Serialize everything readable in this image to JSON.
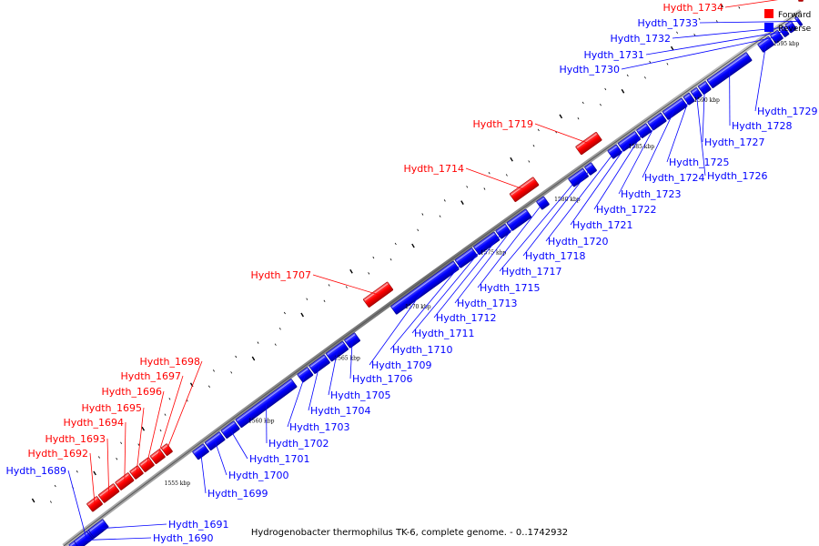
{
  "caption": "Hydrogenobacter thermophilus TK-6, complete genome. - 0..1742932",
  "legend": [
    {
      "label": "Forward",
      "color": "#ff0000"
    },
    {
      "label": "Reverse",
      "color": "#0000ff"
    }
  ],
  "colors": {
    "forward": "#ff0000",
    "reverse": "#0000ff",
    "backbone": "#888888"
  },
  "ticks": [
    "1555 kbp",
    "1560 kbp",
    "1565 kbp",
    "1570 kbp",
    "1575 kbp",
    "1580 kbp",
    "1585 kbp",
    "1590 kbp",
    "1595 kbp"
  ],
  "genes": [
    {
      "id": "Hydth_1689",
      "strand": "reverse"
    },
    {
      "id": "Hydth_1690",
      "strand": "reverse"
    },
    {
      "id": "Hydth_1691",
      "strand": "reverse"
    },
    {
      "id": "Hydth_1692",
      "strand": "forward"
    },
    {
      "id": "Hydth_1693",
      "strand": "forward"
    },
    {
      "id": "Hydth_1694",
      "strand": "forward"
    },
    {
      "id": "Hydth_1695",
      "strand": "forward"
    },
    {
      "id": "Hydth_1696",
      "strand": "forward"
    },
    {
      "id": "Hydth_1697",
      "strand": "forward"
    },
    {
      "id": "Hydth_1698",
      "strand": "forward"
    },
    {
      "id": "Hydth_1699",
      "strand": "reverse"
    },
    {
      "id": "Hydth_1700",
      "strand": "reverse"
    },
    {
      "id": "Hydth_1701",
      "strand": "reverse"
    },
    {
      "id": "Hydth_1702",
      "strand": "reverse"
    },
    {
      "id": "Hydth_1703",
      "strand": "reverse"
    },
    {
      "id": "Hydth_1704",
      "strand": "reverse"
    },
    {
      "id": "Hydth_1705",
      "strand": "reverse"
    },
    {
      "id": "Hydth_1706",
      "strand": "reverse"
    },
    {
      "id": "Hydth_1707",
      "strand": "forward"
    },
    {
      "id": "Hydth_1709",
      "strand": "reverse"
    },
    {
      "id": "Hydth_1710",
      "strand": "reverse"
    },
    {
      "id": "Hydth_1711",
      "strand": "reverse"
    },
    {
      "id": "Hydth_1712",
      "strand": "reverse"
    },
    {
      "id": "Hydth_1713",
      "strand": "reverse"
    },
    {
      "id": "Hydth_1714",
      "strand": "forward"
    },
    {
      "id": "Hydth_1715",
      "strand": "reverse"
    },
    {
      "id": "Hydth_1717",
      "strand": "reverse"
    },
    {
      "id": "Hydth_1718",
      "strand": "reverse"
    },
    {
      "id": "Hydth_1719",
      "strand": "forward"
    },
    {
      "id": "Hydth_1720",
      "strand": "reverse"
    },
    {
      "id": "Hydth_1721",
      "strand": "reverse"
    },
    {
      "id": "Hydth_1722",
      "strand": "reverse"
    },
    {
      "id": "Hydth_1723",
      "strand": "reverse"
    },
    {
      "id": "Hydth_1724",
      "strand": "reverse"
    },
    {
      "id": "Hydth_1725",
      "strand": "reverse"
    },
    {
      "id": "Hydth_1726",
      "strand": "reverse"
    },
    {
      "id": "Hydth_1727",
      "strand": "reverse"
    },
    {
      "id": "Hydth_1728",
      "strand": "reverse"
    },
    {
      "id": "Hydth_1729",
      "strand": "reverse"
    },
    {
      "id": "Hydth_1730",
      "strand": "reverse"
    },
    {
      "id": "Hydth_1731",
      "strand": "reverse"
    },
    {
      "id": "Hydth_1732",
      "strand": "reverse"
    },
    {
      "id": "Hydth_1733",
      "strand": "reverse"
    },
    {
      "id": "Hydth_1734",
      "strand": "forward"
    }
  ]
}
